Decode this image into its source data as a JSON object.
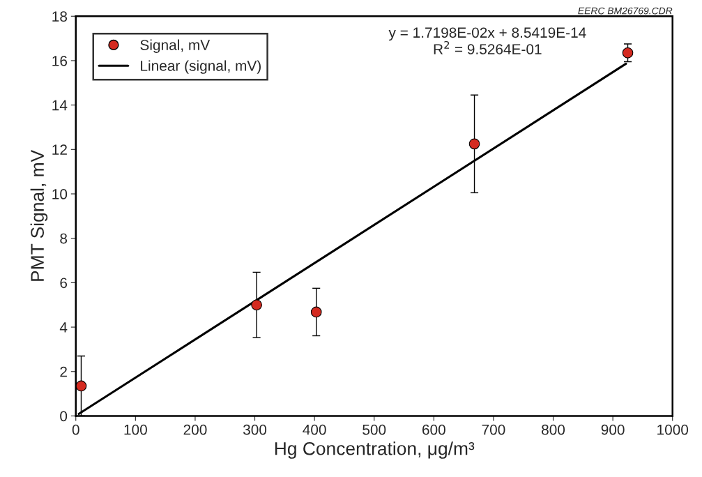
{
  "chart_data": {
    "type": "scatter",
    "xlabel": "Hg Concentration, μg/m³",
    "ylabel": "PMT Signal, mV",
    "x": [
      9,
      303,
      403,
      668,
      925
    ],
    "series": [
      {
        "name": "Signal, mV",
        "color": "#d42a20",
        "values": [
          1.35,
          5.0,
          4.68,
          12.25,
          16.35
        ],
        "errors": [
          1.35,
          1.47,
          1.07,
          2.2,
          0.4
        ],
        "marker": "circle"
      },
      {
        "name": "Linear (signal, mV)",
        "type": "line",
        "color": "#000000",
        "x": [
          5,
          922
        ],
        "values": [
          0.09,
          15.86
        ],
        "marker": "none",
        "line_style": "solid"
      }
    ],
    "xlim": [
      0,
      1000
    ],
    "xticks": [
      0,
      100,
      200,
      300,
      400,
      500,
      600,
      700,
      800,
      900,
      1000
    ],
    "ylim": [
      0,
      18
    ],
    "yticks": [
      0,
      2,
      4,
      6,
      8,
      10,
      12,
      14,
      16,
      18
    ],
    "grid": false,
    "legend": "top left",
    "annotations": [
      "y = 1.7198E-02x + 8.5419E-14\nR$^{2}$ = 9.5264E-01",
      "EERC BM26769.CDR"
    ]
  }
}
